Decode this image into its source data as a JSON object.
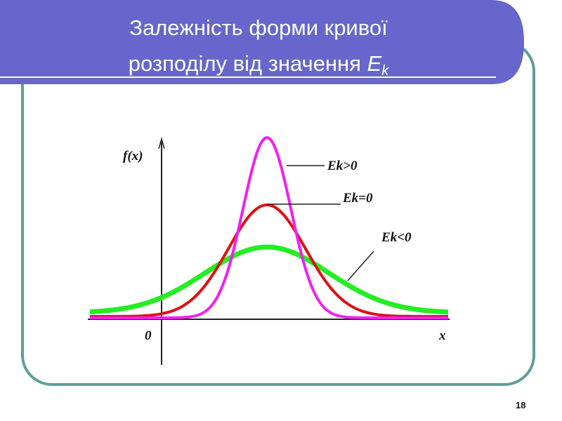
{
  "header": {
    "title_line1": "Залежність  форми кривої",
    "title_line2": "розподілу  від значення ",
    "title_symbol": "E",
    "title_subscript": "k"
  },
  "figure": {
    "y_axis_label": "f(x)",
    "x_axis_label": "x",
    "origin_label": "0",
    "curves": [
      {
        "label": "Ek>0"
      },
      {
        "label": "Ek=0"
      },
      {
        "label": "Ek<0"
      }
    ]
  },
  "footer": {
    "page_number": "18"
  }
}
